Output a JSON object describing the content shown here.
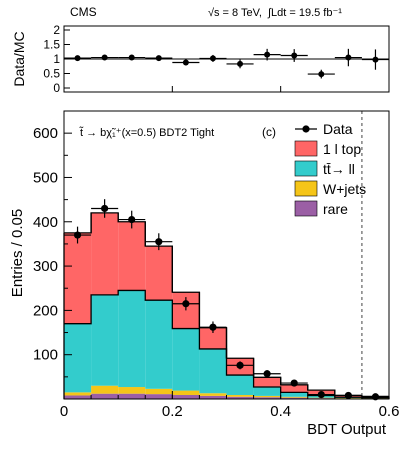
{
  "header": {
    "experiment": "CMS",
    "energy": "√s = 8 TeV,",
    "lumi": "∫Ldt = 19.5 fb⁻¹"
  },
  "chart_data": [
    {
      "type": "scatter",
      "panel": "ratio",
      "ylabel": "Data/MC",
      "ylim": [
        0,
        2
      ],
      "yticks": [
        "0",
        "0.5",
        "1",
        "1.5",
        "2"
      ],
      "x": [
        0.025,
        0.075,
        0.125,
        0.175,
        0.225,
        0.275,
        0.325,
        0.375,
        0.425,
        0.475,
        0.525,
        0.575
      ],
      "values": [
        1.03,
        1.05,
        1.05,
        1.03,
        0.88,
        1.02,
        0.83,
        1.15,
        1.12,
        0.48,
        1.05,
        0.98
      ],
      "errors": [
        0.07,
        0.06,
        0.06,
        0.07,
        0.1,
        0.12,
        0.15,
        0.2,
        0.22,
        0.15,
        0.3,
        0.35
      ],
      "reference_line": 1
    },
    {
      "type": "bar",
      "panel": "main",
      "stacked": true,
      "annotation": "t̃ → bχ̃₁⁺(x=0.5) BDT2 Tight",
      "panel_label": "(c)",
      "xlabel": "BDT Output",
      "ylabel": "Entries / 0.05",
      "xlim": [
        0,
        0.6
      ],
      "ylim": [
        0,
        650
      ],
      "xticks": [
        "0",
        "0.2",
        "0.4",
        "0.6"
      ],
      "yticks": [
        "100",
        "200",
        "300",
        "400",
        "500",
        "600"
      ],
      "bin_edges": [
        0,
        0.05,
        0.1,
        0.15,
        0.2,
        0.25,
        0.3,
        0.35,
        0.4,
        0.45,
        0.5,
        0.55,
        0.6
      ],
      "series": [
        {
          "name": "rare",
          "color": "#9b5fa5",
          "values": [
            8,
            12,
            12,
            11,
            9,
            7,
            5,
            4,
            3,
            2,
            1,
            1
          ]
        },
        {
          "name": "W+jets",
          "color": "#f5c518",
          "values": [
            7,
            18,
            15,
            12,
            10,
            6,
            4,
            3,
            2,
            1,
            1,
            1
          ]
        },
        {
          "name": "tt̄→ ll",
          "color": "#33cccc",
          "values": [
            155,
            205,
            218,
            200,
            140,
            100,
            45,
            20,
            10,
            5,
            2,
            1
          ]
        },
        {
          "name": "1 l top",
          "color": "#ff6666",
          "values": [
            205,
            185,
            155,
            122,
            82,
            48,
            38,
            22,
            17,
            12,
            4,
            3
          ]
        }
      ],
      "data": {
        "name": "Data",
        "x": [
          0.025,
          0.075,
          0.125,
          0.175,
          0.225,
          0.275,
          0.325,
          0.375,
          0.425,
          0.475,
          0.525,
          0.575
        ],
        "values": [
          370,
          430,
          405,
          355,
          215,
          162,
          76,
          57,
          36,
          10,
          8,
          5
        ],
        "errors": [
          19,
          21,
          20,
          19,
          15,
          13,
          9,
          8,
          6,
          3,
          3,
          2
        ]
      },
      "cut_line_x": 0.55
    }
  ]
}
